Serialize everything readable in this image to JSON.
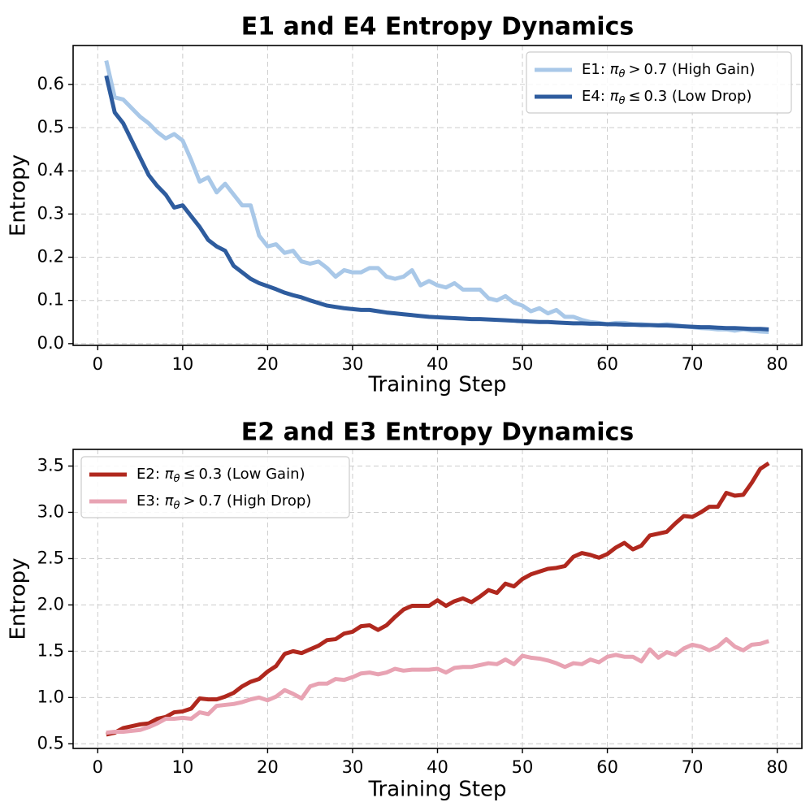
{
  "chart_data": [
    {
      "type": "line",
      "title": "E1 and E4 Entropy Dynamics",
      "xlabel": "Training Step",
      "ylabel": "Entropy",
      "xlim": [
        -2.9,
        82.9
      ],
      "ylim": [
        -0.004,
        0.69
      ],
      "xticks": [
        0,
        10,
        20,
        30,
        40,
        50,
        60,
        70,
        80
      ],
      "yticks": [
        0.0,
        0.1,
        0.2,
        0.3,
        0.4,
        0.5,
        0.6
      ],
      "ytick_labels": [
        "0.0",
        "0.1",
        "0.2",
        "0.3",
        "0.4",
        "0.5",
        "0.6"
      ],
      "grid": true,
      "legend_position": "top-right",
      "x_start": 1,
      "series": [
        {
          "name": "E1: πθ > 0.7 (High Gain)",
          "label_prefix": "E1: ",
          "label_op": ">",
          "label_value": "0.7",
          "label_suffix": " (High Gain)",
          "color": "#a9c8e8",
          "values": [
            0.655,
            0.57,
            0.565,
            0.545,
            0.525,
            0.51,
            0.49,
            0.475,
            0.485,
            0.47,
            0.425,
            0.375,
            0.385,
            0.35,
            0.37,
            0.345,
            0.32,
            0.32,
            0.25,
            0.225,
            0.23,
            0.21,
            0.215,
            0.19,
            0.185,
            0.19,
            0.175,
            0.155,
            0.17,
            0.165,
            0.165,
            0.175,
            0.175,
            0.155,
            0.15,
            0.155,
            0.17,
            0.135,
            0.145,
            0.135,
            0.13,
            0.14,
            0.125,
            0.125,
            0.125,
            0.105,
            0.1,
            0.11,
            0.095,
            0.088,
            0.075,
            0.082,
            0.07,
            0.078,
            0.062,
            0.062,
            0.055,
            0.05,
            0.048,
            0.045,
            0.048,
            0.048,
            0.045,
            0.045,
            0.043,
            0.043,
            0.045,
            0.043,
            0.04,
            0.038,
            0.036,
            0.035,
            0.033,
            0.033,
            0.03,
            0.033,
            0.03,
            0.028,
            0.027
          ]
        },
        {
          "name": "E4: πθ ≤ 0.3 (Low Drop)",
          "label_prefix": "E4: ",
          "label_op": "≤",
          "label_value": "0.3",
          "label_suffix": " (Low Drop)",
          "color": "#2e5c9e",
          "values": [
            0.62,
            0.535,
            0.51,
            0.47,
            0.43,
            0.39,
            0.365,
            0.345,
            0.315,
            0.32,
            0.295,
            0.27,
            0.24,
            0.225,
            0.215,
            0.18,
            0.165,
            0.15,
            0.14,
            0.133,
            0.126,
            0.118,
            0.112,
            0.107,
            0.1,
            0.094,
            0.088,
            0.085,
            0.082,
            0.08,
            0.078,
            0.078,
            0.075,
            0.072,
            0.07,
            0.068,
            0.066,
            0.064,
            0.062,
            0.061,
            0.06,
            0.059,
            0.058,
            0.057,
            0.057,
            0.056,
            0.055,
            0.054,
            0.053,
            0.052,
            0.051,
            0.05,
            0.05,
            0.049,
            0.048,
            0.047,
            0.047,
            0.046,
            0.046,
            0.045,
            0.045,
            0.044,
            0.044,
            0.043,
            0.043,
            0.042,
            0.042,
            0.041,
            0.04,
            0.039,
            0.038,
            0.038,
            0.037,
            0.036,
            0.036,
            0.035,
            0.034,
            0.034,
            0.033
          ]
        }
      ]
    },
    {
      "type": "line",
      "title": "E2 and E3 Entropy Dynamics",
      "xlabel": "Training Step",
      "ylabel": "Entropy",
      "xlim": [
        -2.9,
        82.9
      ],
      "ylim": [
        0.45,
        3.68
      ],
      "xticks": [
        0,
        10,
        20,
        30,
        40,
        50,
        60,
        70,
        80
      ],
      "yticks": [
        0.5,
        1.0,
        1.5,
        2.0,
        2.5,
        3.0,
        3.5
      ],
      "ytick_labels": [
        "0.5",
        "1.0",
        "1.5",
        "2.0",
        "2.5",
        "3.0",
        "3.5"
      ],
      "grid": true,
      "legend_position": "top-left",
      "x_start": 1,
      "series": [
        {
          "name": "E2: πθ ≤ 0.3 (Low Gain)",
          "label_prefix": "E2: ",
          "label_op": "≤",
          "label_value": "0.3",
          "label_suffix": " (Low Gain)",
          "color": "#b0281e",
          "values": [
            0.6,
            0.62,
            0.67,
            0.69,
            0.71,
            0.72,
            0.77,
            0.79,
            0.84,
            0.85,
            0.88,
            0.99,
            0.98,
            0.98,
            1.01,
            1.05,
            1.12,
            1.17,
            1.2,
            1.28,
            1.34,
            1.47,
            1.5,
            1.48,
            1.52,
            1.56,
            1.62,
            1.63,
            1.69,
            1.71,
            1.77,
            1.78,
            1.73,
            1.78,
            1.87,
            1.95,
            1.99,
            1.99,
            1.99,
            2.05,
            1.99,
            2.04,
            2.07,
            2.03,
            2.09,
            2.16,
            2.13,
            2.23,
            2.2,
            2.28,
            2.33,
            2.36,
            2.39,
            2.4,
            2.42,
            2.52,
            2.56,
            2.54,
            2.51,
            2.55,
            2.62,
            2.67,
            2.6,
            2.64,
            2.75,
            2.77,
            2.79,
            2.88,
            2.96,
            2.95,
            3.0,
            3.06,
            3.06,
            3.21,
            3.18,
            3.19,
            3.32,
            3.47,
            3.53
          ]
        },
        {
          "name": "E3: πθ > 0.7 (High Drop)",
          "label_prefix": "E3: ",
          "label_op": ">",
          "label_value": "0.7",
          "label_suffix": " (High Drop)",
          "color": "#e8a3b3",
          "values": [
            0.62,
            0.63,
            0.63,
            0.64,
            0.65,
            0.68,
            0.72,
            0.77,
            0.77,
            0.78,
            0.77,
            0.84,
            0.82,
            0.91,
            0.92,
            0.93,
            0.95,
            0.98,
            1.0,
            0.97,
            1.01,
            1.08,
            1.04,
            0.99,
            1.12,
            1.15,
            1.15,
            1.2,
            1.19,
            1.22,
            1.26,
            1.27,
            1.25,
            1.27,
            1.31,
            1.29,
            1.3,
            1.3,
            1.3,
            1.31,
            1.27,
            1.32,
            1.33,
            1.33,
            1.35,
            1.37,
            1.36,
            1.41,
            1.36,
            1.45,
            1.43,
            1.42,
            1.4,
            1.37,
            1.33,
            1.37,
            1.36,
            1.41,
            1.38,
            1.44,
            1.46,
            1.44,
            1.44,
            1.39,
            1.52,
            1.43,
            1.49,
            1.46,
            1.53,
            1.57,
            1.55,
            1.51,
            1.55,
            1.63,
            1.55,
            1.51,
            1.57,
            1.58,
            1.61
          ]
        }
      ]
    }
  ]
}
